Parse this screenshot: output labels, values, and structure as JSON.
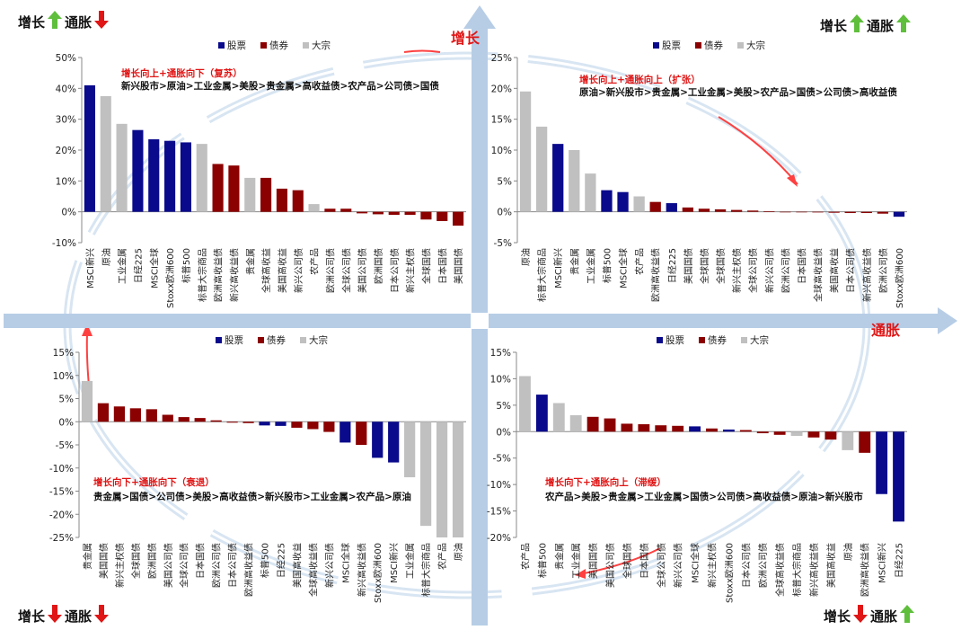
{
  "colors": {
    "stock": "#0a0a8c",
    "bond": "#8b0000",
    "commodity": "#c0c0c0",
    "axis_arrow": "#b7cde6",
    "cycle_arrow": "#d8e5f2",
    "cycle_red": "#ff4040",
    "up": "#5fbf3c",
    "down": "#e01515"
  },
  "axes": {
    "growth_label": "增长",
    "inflation_label": "通胀"
  },
  "legend": {
    "stock": "股票",
    "bond": "债券",
    "commodity": "大宗"
  },
  "corners": [
    {
      "id": "tl",
      "growth": "增长",
      "growth_dir": "up",
      "inflation": "通胀",
      "inflation_dir": "down"
    },
    {
      "id": "tr",
      "growth": "增长",
      "growth_dir": "up",
      "inflation": "通胀",
      "inflation_dir": "up"
    },
    {
      "id": "bl",
      "growth": "增长",
      "growth_dir": "down",
      "inflation": "通胀",
      "inflation_dir": "down"
    },
    {
      "id": "br",
      "growth": "增长",
      "growth_dir": "down",
      "inflation": "通胀",
      "inflation_dir": "up"
    }
  ],
  "chart_data": [
    {
      "id": "recovery",
      "type": "bar",
      "title": "增长向上+通胀向下（复苏）",
      "ranking": "新兴股市>原油>工业金属>美股>贵金属>高收益债>农产品>公司债>国债",
      "ylim": [
        -10,
        50
      ],
      "yticks": [
        -10,
        0,
        10,
        20,
        30,
        40,
        50
      ],
      "categories": [
        "MSCI新兴",
        "原油",
        "工业金属",
        "日经225",
        "MSCI全球",
        "Stoxx欧洲600",
        "标普500",
        "标普大宗商品",
        "欧洲高收益债",
        "新兴高收益债",
        "贵金属",
        "全球高收益",
        "美国高收益",
        "新兴公司债",
        "农产品",
        "欧洲公司债",
        "全球公司债",
        "美国公司债",
        "欧洲国债",
        "日本公司债",
        "新兴主权债",
        "全球国债",
        "日本国债",
        "美国国债"
      ],
      "values": [
        41,
        37.5,
        28.5,
        26.5,
        23.5,
        23,
        22.5,
        22,
        15.5,
        15,
        11,
        11,
        7.5,
        7,
        2.5,
        1,
        1,
        -0.5,
        -0.8,
        -1,
        -1,
        -2.5,
        -3,
        -4.5
      ],
      "kinds": [
        "stock",
        "commodity",
        "commodity",
        "stock",
        "stock",
        "stock",
        "stock",
        "commodity",
        "bond",
        "bond",
        "commodity",
        "bond",
        "bond",
        "bond",
        "commodity",
        "bond",
        "bond",
        "bond",
        "bond",
        "bond",
        "bond",
        "bond",
        "bond",
        "bond"
      ]
    },
    {
      "id": "expansion",
      "type": "bar",
      "title": "增长向上+通胀向上（扩张）",
      "ranking": "原油>新兴股市>贵金属>工业金属>美股>农产品>国债>公司债>高收益债",
      "ylim": [
        -5,
        25
      ],
      "yticks": [
        -5,
        0,
        5,
        10,
        15,
        20,
        25
      ],
      "categories": [
        "原油",
        "标普大宗商品",
        "MSCI新兴",
        "贵金属",
        "工业金属",
        "标普500",
        "MSCI全球",
        "农产品",
        "欧洲高收益债",
        "日经225",
        "美国国债",
        "全球国债",
        "全球国债",
        "新兴主权债",
        "全球公司债",
        "新兴公司债",
        "欧洲公司债",
        "日本国债",
        "全球高收益债",
        "美国高收益",
        "日本公司债",
        "新兴高收益债",
        "欧洲公司债",
        "Stoxx欧洲600"
      ],
      "values": [
        19.5,
        13.8,
        11,
        10,
        6.2,
        3.5,
        3.2,
        2.5,
        1.6,
        1.4,
        0.7,
        0.5,
        0.4,
        0.3,
        0.2,
        0.1,
        0,
        -0.05,
        -0.1,
        -0.15,
        -0.2,
        -0.2,
        -0.3,
        -0.8
      ],
      "kinds": [
        "commodity",
        "commodity",
        "stock",
        "commodity",
        "commodity",
        "stock",
        "stock",
        "commodity",
        "bond",
        "stock",
        "bond",
        "bond",
        "bond",
        "bond",
        "bond",
        "bond",
        "bond",
        "bond",
        "bond",
        "bond",
        "bond",
        "bond",
        "bond",
        "stock"
      ]
    },
    {
      "id": "recession",
      "type": "bar",
      "title": "增长向下+通胀向下（衰退）",
      "ranking": "贵金属>国债>公司债>美股>高收益债>新兴股市>工业金属>农产品>原油",
      "ylim": [
        -25,
        15
      ],
      "yticks": [
        -25,
        -20,
        -15,
        -10,
        -5,
        0,
        5,
        10,
        15
      ],
      "categories": [
        "贵金属",
        "美国国债",
        "新兴主权债",
        "全球国债",
        "欧洲国债",
        "美国公司债",
        "全球公司债",
        "日本国债",
        "欧洲公司债",
        "日本公司债",
        "欧洲高收益债",
        "标普500",
        "日经225",
        "美国高收益",
        "全球高收益债",
        "新兴公司债",
        "MSCI全球",
        "新兴高收益债",
        "Stoxx欧洲600",
        "MSCI新兴",
        "工业金属",
        "标普大宗商品",
        "农产品",
        "原油"
      ],
      "values": [
        8.8,
        4,
        3.3,
        2.9,
        2.7,
        1.5,
        1.0,
        0.8,
        0.3,
        -0.2,
        -0.3,
        -0.8,
        -0.9,
        -1.3,
        -1.6,
        -2.2,
        -4.5,
        -5,
        -7.8,
        -8.8,
        -12,
        -22.5,
        -25,
        -25
      ],
      "kinds": [
        "commodity",
        "bond",
        "bond",
        "bond",
        "bond",
        "bond",
        "bond",
        "bond",
        "bond",
        "bond",
        "bond",
        "stock",
        "stock",
        "bond",
        "bond",
        "bond",
        "stock",
        "bond",
        "stock",
        "stock",
        "commodity",
        "commodity",
        "commodity",
        "commodity"
      ]
    },
    {
      "id": "stagflation",
      "type": "bar",
      "title": "增长向下+通胀向上（滞缓）",
      "ranking": "农产品>美股>贵金属>工业金属>国债>公司债>高收益债>原油>新兴股市",
      "ylim": [
        -20,
        15
      ],
      "yticks": [
        -20,
        -15,
        -10,
        -5,
        0,
        5,
        10,
        15
      ],
      "categories": [
        "农产品",
        "标普500",
        "贵金属",
        "工业金属",
        "美国国债",
        "美国公司债",
        "全球国债",
        "日本国债",
        "全球公司债",
        "新兴公司债",
        "MSCI全球",
        "新兴主权债",
        "Stoxx欧洲600",
        "日本公司债",
        "欧洲公司债",
        "全球高收益债",
        "标普大宗商品",
        "新兴高收益债",
        "美国高收益",
        "原油",
        "欧洲高收益债",
        "MSCI新兴",
        "日经225"
      ],
      "values": [
        10.5,
        7,
        5.4,
        3.1,
        2.8,
        2.5,
        1.5,
        1.4,
        1.2,
        1.1,
        1.0,
        0.6,
        0.4,
        0.3,
        -0.3,
        -0.6,
        -0.8,
        -1.1,
        -1.5,
        -3.5,
        -4,
        -11.8,
        -17
      ],
      "kinds": [
        "commodity",
        "stock",
        "commodity",
        "commodity",
        "bond",
        "bond",
        "bond",
        "bond",
        "bond",
        "bond",
        "stock",
        "bond",
        "stock",
        "bond",
        "bond",
        "bond",
        "commodity",
        "bond",
        "bond",
        "commodity",
        "bond",
        "stock",
        "stock"
      ]
    }
  ]
}
